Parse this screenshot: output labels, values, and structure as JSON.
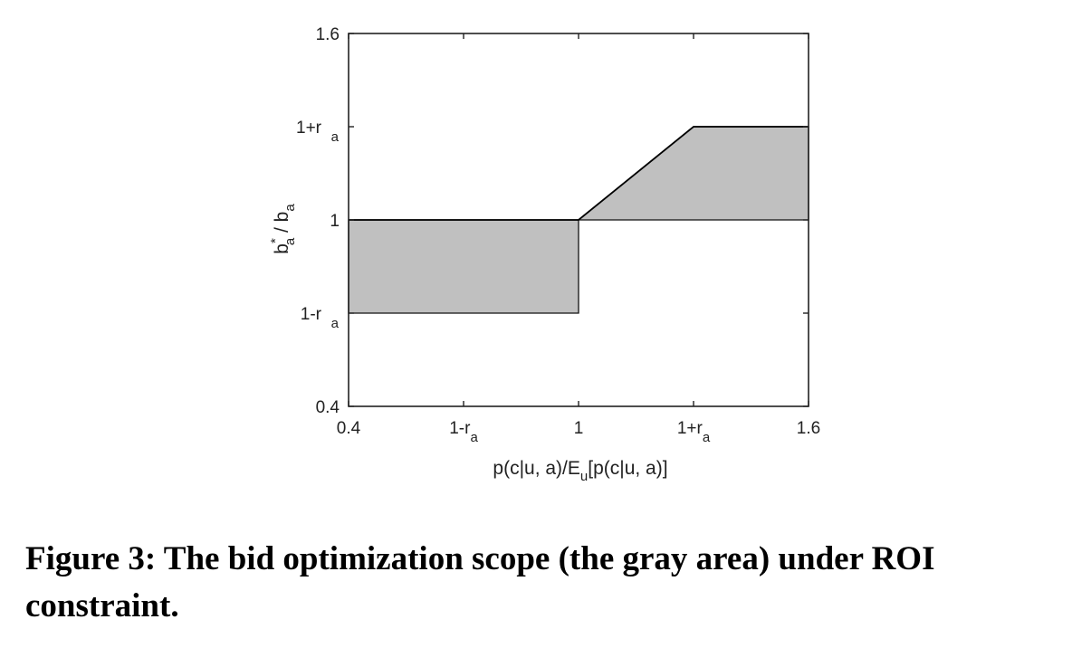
{
  "chart_data": {
    "type": "area",
    "x_scale": "linear",
    "y_scale": "linear",
    "r_a": 0.3,
    "xlim": [
      0.4,
      1.6
    ],
    "ylim": [
      0.4,
      1.6
    ],
    "xlabel": {
      "before": "p(c|u, a)/E",
      "sub": "u",
      "after": "[p(c|u, a)]"
    },
    "ylabel": {
      "b1": "b",
      "sup": "*",
      "sub1": "a",
      "mid": " / b",
      "sub2": "a"
    },
    "x_ticks": [
      {
        "value": 0.4,
        "text": "0.4",
        "sub": ""
      },
      {
        "value": 0.7,
        "text": "1-r",
        "sub": "a"
      },
      {
        "value": 1.0,
        "text": "1",
        "sub": ""
      },
      {
        "value": 1.3,
        "text": "1+r",
        "sub": "a"
      },
      {
        "value": 1.6,
        "text": "1.6",
        "sub": ""
      }
    ],
    "y_ticks": [
      {
        "value": 0.4,
        "text": "0.4",
        "sub": ""
      },
      {
        "value": 0.7,
        "text": "1-r",
        "sub": "a"
      },
      {
        "value": 1.0,
        "text": "1",
        "sub": ""
      },
      {
        "value": 1.3,
        "text": "1+r",
        "sub": "a"
      },
      {
        "value": 1.6,
        "text": "1.6",
        "sub": ""
      }
    ],
    "regions": [
      {
        "name": "lower-region",
        "polygon": [
          [
            0.4,
            0.7
          ],
          [
            1.0,
            0.7
          ],
          [
            1.0,
            1.0
          ],
          [
            0.4,
            1.0
          ]
        ],
        "color": "#c0c0c0"
      },
      {
        "name": "upper-region",
        "polygon": [
          [
            1.0,
            1.0
          ],
          [
            1.3,
            1.3
          ],
          [
            1.6,
            1.3
          ],
          [
            1.6,
            1.0
          ]
        ],
        "color": "#c0c0c0"
      }
    ],
    "boundary_line": [
      [
        0.4,
        1.0
      ],
      [
        1.0,
        1.0
      ],
      [
        1.3,
        1.3
      ],
      [
        1.6,
        1.3
      ]
    ],
    "grid": false,
    "legend": "none"
  },
  "caption": "Figure 3: The bid optimization scope (the gray area) under ROI constraint."
}
